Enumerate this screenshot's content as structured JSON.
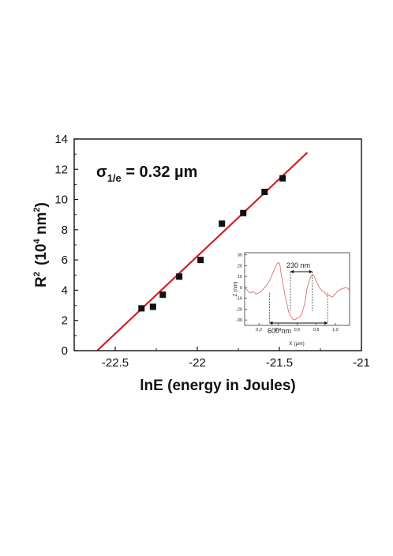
{
  "chart_data": [
    {
      "type": "scatter",
      "xlabel": "lnE (energy in Joules)",
      "ylabel_base": "R",
      "ylabel_sup": "2",
      "ylabel_unit_open": "(10",
      "ylabel_unit_sup1": "4",
      "ylabel_unit_mid": " nm",
      "ylabel_unit_sup2": "2",
      "ylabel_unit_close": ")",
      "xlim": [
        -22.75,
        -21.0
      ],
      "ylim": [
        0,
        14
      ],
      "xticks": [
        -22.5,
        -22.0,
        -21.5,
        -21.0
      ],
      "xtick_labels": [
        "-22.5",
        "-22",
        "-21.5",
        "-21"
      ],
      "yticks": [
        0,
        2,
        4,
        6,
        8,
        10,
        12,
        14
      ],
      "ytick_labels": [
        "0",
        "2",
        "4",
        "6",
        "8",
        "10",
        "12",
        "14"
      ],
      "series": [
        {
          "kind": "points",
          "marker": "square",
          "color": "#111111",
          "x": [
            -22.34,
            -22.27,
            -22.21,
            -22.11,
            -21.98,
            -21.85,
            -21.72,
            -21.59,
            -21.48
          ],
          "y": [
            2.8,
            2.9,
            3.7,
            4.9,
            6.0,
            8.4,
            9.1,
            10.5,
            11.4
          ]
        },
        {
          "kind": "fit-line",
          "color": "#d42020",
          "x": [
            -22.61,
            -21.33
          ],
          "y": [
            0.0,
            13.1
          ]
        }
      ],
      "annotation": {
        "symbol": "σ",
        "subscript": "1/e",
        "text": " = 0.32 µm"
      }
    },
    {
      "type": "line",
      "xlabel": "X (µm)",
      "ylabel": "Z (nm)",
      "xlim": [
        0.05,
        1.15
      ],
      "ylim": [
        -35,
        32
      ],
      "xticks": [
        0.2,
        0.4,
        0.6,
        0.8,
        1.0
      ],
      "xtick_labels": [
        "0,2",
        "0,4",
        "0,6",
        "0,8",
        "1,0"
      ],
      "yticks": [
        -30,
        -20,
        -10,
        0,
        10,
        20,
        30
      ],
      "ytick_labels": [
        "-30",
        "-20",
        "-10",
        "0",
        "10",
        "20",
        "30"
      ],
      "series": [
        {
          "kind": "profile",
          "color": "#d97070",
          "x": [
            0.05,
            0.08,
            0.11,
            0.14,
            0.17,
            0.2,
            0.23,
            0.26,
            0.29,
            0.31,
            0.33,
            0.35,
            0.37,
            0.39,
            0.41,
            0.42,
            0.43,
            0.45,
            0.47,
            0.49,
            0.5,
            0.51,
            0.53,
            0.55,
            0.57,
            0.59,
            0.61,
            0.63,
            0.65,
            0.67,
            0.69,
            0.7,
            0.72,
            0.74,
            0.76,
            0.78,
            0.8,
            0.82,
            0.84,
            0.86,
            0.88,
            0.9,
            0.92,
            0.94,
            0.96,
            0.98,
            1.0,
            1.02,
            1.05,
            1.08,
            1.11,
            1.15
          ],
          "y": [
            0,
            -3,
            -5,
            -4,
            -6,
            -5,
            -3,
            0,
            3,
            6,
            10,
            14,
            18,
            22,
            23,
            21,
            14,
            4,
            -6,
            -14,
            -18,
            -22,
            -26,
            -29,
            -30,
            -29,
            -28,
            -27,
            -24,
            -18,
            -10,
            -2,
            4,
            9,
            12,
            10,
            6,
            2,
            -1,
            -3,
            -4,
            -6,
            -8,
            -7,
            -9,
            -8,
            -6,
            -4,
            -2,
            -1,
            0,
            -2
          ]
        }
      ],
      "annotations": [
        {
          "text": "230 nm",
          "x_from": 0.53,
          "x_to": 0.76
        },
        {
          "text": "600 nm",
          "x_from": 0.31,
          "x_to": 0.92
        }
      ]
    }
  ]
}
